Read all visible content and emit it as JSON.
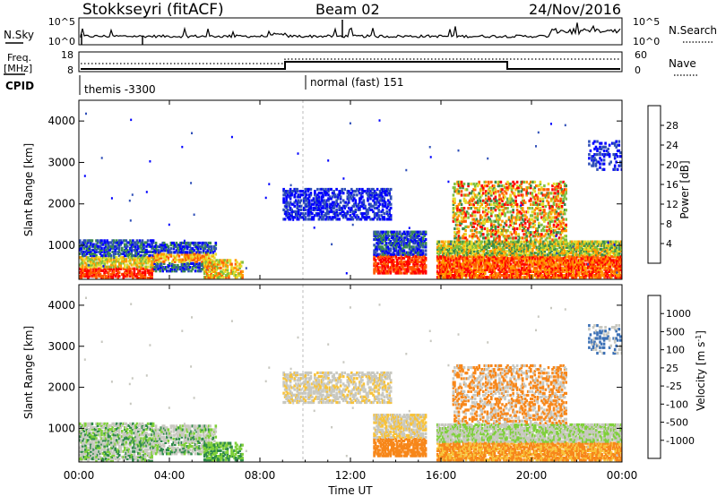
{
  "header": {
    "station": "Stokkseyri (fitACF)",
    "beam": "Beam 02",
    "date": "24/Nov/2016"
  },
  "noise_panel": {
    "left_label": "N.Sky",
    "left_ticks": [
      "10^5",
      "10^0"
    ],
    "right_label": "N.Search",
    "right_ticks": [
      "10^5",
      "10^0"
    ]
  },
  "freq_panel": {
    "left_label_1": "Freq.",
    "left_label_2": "[MHz]",
    "left_ticks": [
      "18",
      "8"
    ],
    "right_label": "Nave",
    "right_ticks": [
      "60",
      "0"
    ]
  },
  "cpid": {
    "label": "CPID",
    "segments": [
      {
        "text": "themis -3300",
        "start_hour": 0.0
      },
      {
        "text": "normal (fast) 151",
        "start_hour": 9.9
      }
    ]
  },
  "chart_data": [
    {
      "type": "heatmap",
      "name": "Power",
      "ylabel": "Slant Range [km]",
      "xlabel": "",
      "y_ticks": [
        "1000",
        "2000",
        "3000",
        "4000"
      ],
      "ylim": [
        180,
        4500
      ],
      "colorbar": {
        "label": "Power [dB]",
        "tick_labels": [
          "4",
          "8",
          "12",
          "16",
          "20",
          "24",
          "28"
        ],
        "colors": [
          "#0000ff",
          "#2f4fb8",
          "#3a8a4e",
          "#7fbf3f",
          "#e6dc2c",
          "#ff9a00",
          "#ff5a00",
          "#ff0000"
        ]
      }
    },
    {
      "type": "heatmap",
      "name": "Velocity",
      "ylabel": "Slant Range [km]",
      "xlabel": "Time UT",
      "y_ticks": [
        "1000",
        "2000",
        "3000",
        "4000"
      ],
      "ylim": [
        180,
        4500
      ],
      "x_ticks": [
        "00:00",
        "04:00",
        "08:00",
        "12:00",
        "16:00",
        "20:00",
        "00:00"
      ],
      "colorbar": {
        "label": "Velocity [m s^-1]",
        "tick_labels": [
          "1000",
          "500",
          "100",
          "25",
          "-25",
          "-100",
          "-500",
          "-1000"
        ],
        "colors": [
          "#1a2aa0",
          "#3a6fb5",
          "#2f8a4a",
          "#7fd03a",
          "#c8c8c0",
          "#f7c23a",
          "#f7871a",
          "#f04a12",
          "#ff0000"
        ]
      }
    }
  ]
}
